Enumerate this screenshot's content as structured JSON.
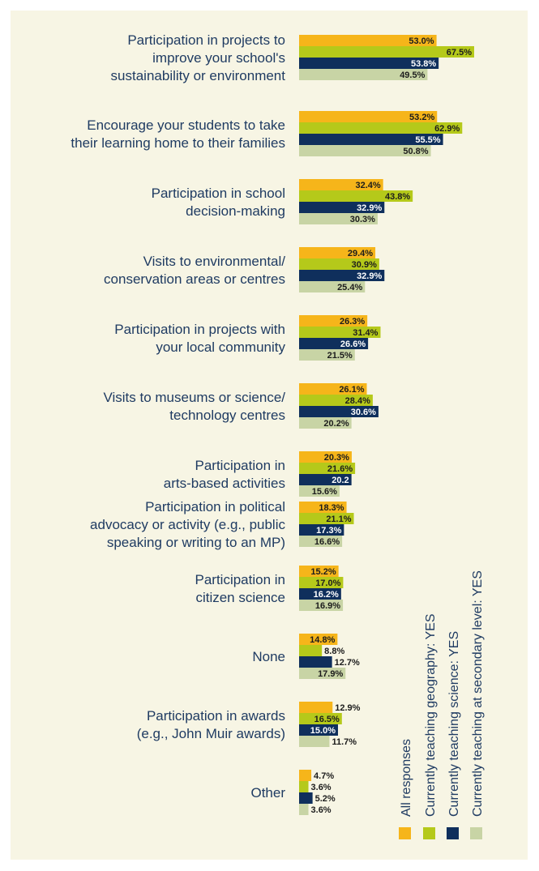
{
  "chart_data": {
    "type": "bar",
    "orientation": "horizontal",
    "categories": [
      [
        "Participation in projects to",
        "improve your school's",
        "sustainability or environment"
      ],
      [
        "Encourage your students to take",
        "their learning home to their families"
      ],
      [
        "Participation in school",
        "decision-making"
      ],
      [
        "Visits to environmental/",
        "conservation areas or centres"
      ],
      [
        "Participation in projects with",
        "your local community"
      ],
      [
        "Visits to museums or science/",
        "technology centres"
      ],
      [
        "Participation in",
        "arts-based activities"
      ],
      [
        "Participation in political",
        "advocacy or activity (e.g., public",
        "speaking or writing to an MP)"
      ],
      [
        "Participation in",
        "citizen science"
      ],
      [
        "None"
      ],
      [
        "Participation in awards",
        "(e.g., John Muir awards)"
      ],
      [
        "Other"
      ]
    ],
    "series": [
      {
        "name": "All responses",
        "color": "#f6b51a",
        "values": [
          53.0,
          53.2,
          32.4,
          29.4,
          26.3,
          26.1,
          20.3,
          18.3,
          15.2,
          14.8,
          12.9,
          4.7
        ],
        "labels": [
          "53.0%",
          "53.2%",
          "32.4%",
          "29.4%",
          "26.3%",
          "26.1%",
          "20.3%",
          "18.3%",
          "15.2%",
          "14.8%",
          "12.9%",
          "4.7%"
        ]
      },
      {
        "name": "Currently teaching geography: YES",
        "color": "#b5c91a",
        "values": [
          67.5,
          62.9,
          43.8,
          30.9,
          31.4,
          28.4,
          21.6,
          21.1,
          17.0,
          8.8,
          16.5,
          3.6
        ],
        "labels": [
          "67.5%",
          "62.9%",
          "43.8%",
          "30.9%",
          "31.4%",
          "28.4%",
          "21.6%",
          "21.1%",
          "17.0%",
          "8.8%",
          "16.5%",
          "3.6%"
        ]
      },
      {
        "name": "Currently teaching science: YES",
        "color": "#0f2f5c",
        "values": [
          53.8,
          55.5,
          32.9,
          32.9,
          26.6,
          30.6,
          20.2,
          17.3,
          16.2,
          12.7,
          15.0,
          5.2
        ],
        "labels": [
          "53.8%",
          "55.5%",
          "32.9%",
          "32.9%",
          "26.6%",
          "30.6%",
          "20.2",
          "17.3%",
          "16.2%",
          "12.7%",
          "15.0%",
          "5.2%"
        ]
      },
      {
        "name": "Currently teaching at secondary level: YES",
        "color": "#c8d4a5",
        "values": [
          49.5,
          50.8,
          30.3,
          25.4,
          21.5,
          20.2,
          15.6,
          16.6,
          16.9,
          17.9,
          11.7,
          3.6
        ],
        "labels": [
          "49.5%",
          "50.8%",
          "30.3%",
          "25.4%",
          "21.5%",
          "20.2%",
          "15.6%",
          "16.6%",
          "16.9%",
          "17.9%",
          "11.7%",
          "3.6%"
        ]
      }
    ],
    "xlim": [
      0,
      100
    ],
    "legend_position": "bottom-right, vertical text",
    "title": "",
    "xlabel": "",
    "ylabel": ""
  }
}
